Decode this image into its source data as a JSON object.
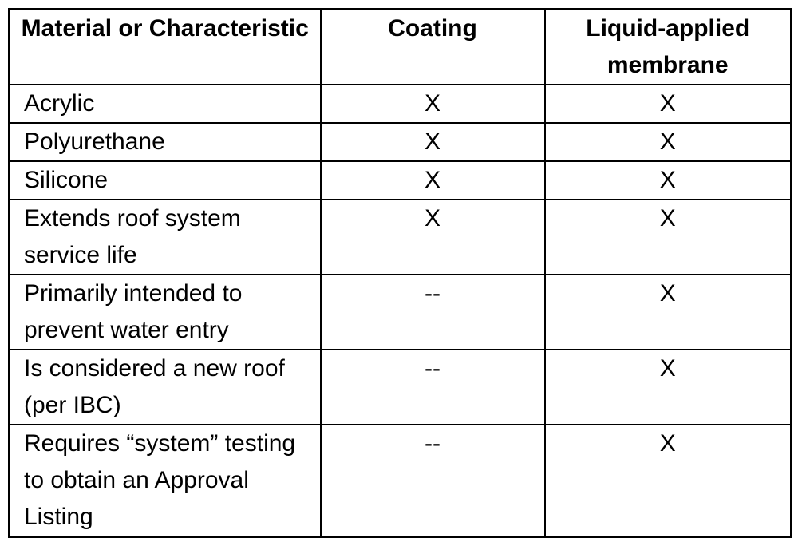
{
  "table": {
    "columns": [
      {
        "label": "Material or Characteristic"
      },
      {
        "label": "Coating"
      },
      {
        "label": "Liquid-applied membrane"
      }
    ],
    "rows": [
      {
        "label": "Acrylic",
        "coating": "X",
        "membrane": "X"
      },
      {
        "label": "Polyurethane",
        "coating": "X",
        "membrane": "X"
      },
      {
        "label": "Silicone",
        "coating": "X",
        "membrane": "X"
      },
      {
        "label": "Extends roof system service life",
        "coating": "X",
        "membrane": "X"
      },
      {
        "label": "Primarily intended to prevent water entry",
        "coating": "--",
        "membrane": "X"
      },
      {
        "label": "Is considered a new roof (per IBC)",
        "coating": "--",
        "membrane": "X"
      },
      {
        "label": "Requires “system” testing to obtain an Approval Listing",
        "coating": "--",
        "membrane": "X"
      }
    ]
  }
}
